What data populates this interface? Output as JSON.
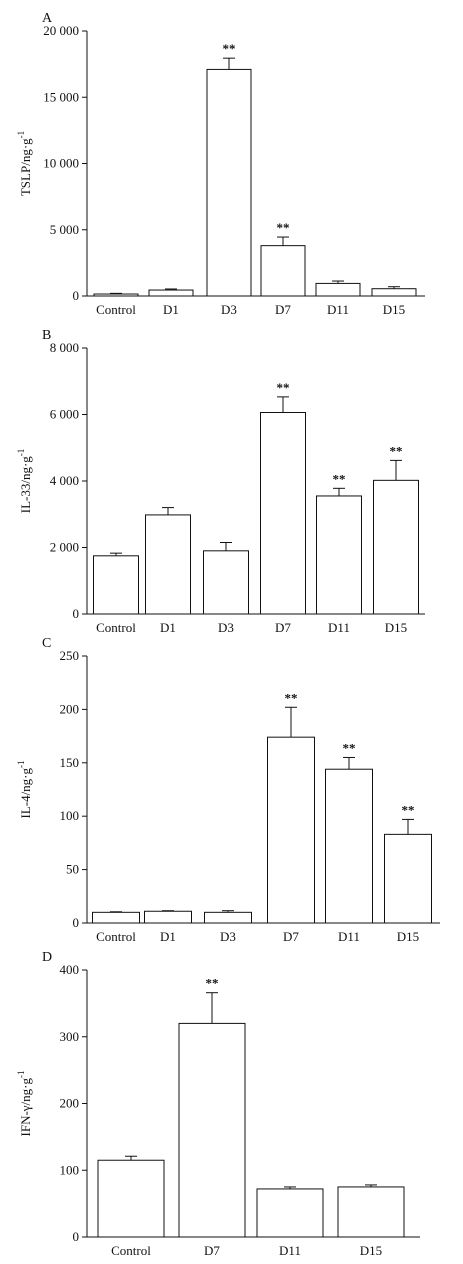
{
  "chart_data": [
    {
      "type": "bar",
      "panel": "A",
      "ylabel": "TSLP/ng·g",
      "ylabel_sup": "-1",
      "categories": [
        "Control",
        "D1",
        "D3",
        "D7",
        "D11",
        "D15"
      ],
      "values": [
        150,
        450,
        17100,
        3800,
        950,
        550
      ],
      "errors": [
        50,
        80,
        850,
        650,
        180,
        150
      ],
      "significance": [
        "",
        "",
        "**",
        "**",
        "",
        ""
      ],
      "ylim": [
        0,
        20000
      ],
      "yticks": [
        0,
        5000,
        10000,
        15000,
        20000
      ],
      "ytick_labels": [
        "0",
        "5 000",
        "10 000",
        "15 000",
        "20 000"
      ]
    },
    {
      "type": "bar",
      "panel": "B",
      "ylabel": "IL-33/ng·g",
      "ylabel_sup": "-1",
      "categories": [
        "Control",
        "D1",
        "D3",
        "D7",
        "D11",
        "D15"
      ],
      "values": [
        1750,
        2980,
        1900,
        6060,
        3550,
        4020
      ],
      "errors": [
        80,
        220,
        250,
        470,
        230,
        600
      ],
      "significance": [
        "",
        "",
        "",
        "**",
        "**",
        "**"
      ],
      "ylim": [
        0,
        8000
      ],
      "yticks": [
        0,
        2000,
        4000,
        6000,
        8000
      ],
      "ytick_labels": [
        "0",
        "2 000",
        "4 000",
        "6 000",
        "8 000"
      ]
    },
    {
      "type": "bar",
      "panel": "C",
      "ylabel": "IL-4/ng·g",
      "ylabel_sup": "-1",
      "categories": [
        "Control",
        "D1",
        "D3",
        "D7",
        "D11",
        "D15"
      ],
      "values": [
        10,
        11,
        10,
        174,
        144,
        83
      ],
      "errors": [
        0.5,
        0.5,
        1.5,
        28,
        11,
        14
      ],
      "significance": [
        "",
        "",
        "",
        "**",
        "**",
        "**"
      ],
      "ylim": [
        0,
        250
      ],
      "yticks": [
        0,
        50,
        100,
        150,
        200,
        250
      ],
      "ytick_labels": [
        "0",
        "50",
        "100",
        "150",
        "200",
        "250"
      ]
    },
    {
      "type": "bar",
      "panel": "D",
      "ylabel": "IFN-γ/ng·g",
      "ylabel_sup": "-1",
      "categories": [
        "Control",
        "D7",
        "D11",
        "D15"
      ],
      "values": [
        115,
        320,
        72,
        75
      ],
      "errors": [
        6,
        46,
        3,
        3
      ],
      "significance": [
        "",
        "**",
        "",
        ""
      ],
      "ylim": [
        0,
        400
      ],
      "yticks": [
        0,
        100,
        200,
        300,
        400
      ],
      "ytick_labels": [
        "0",
        "100",
        "200",
        "300",
        "400"
      ]
    }
  ]
}
